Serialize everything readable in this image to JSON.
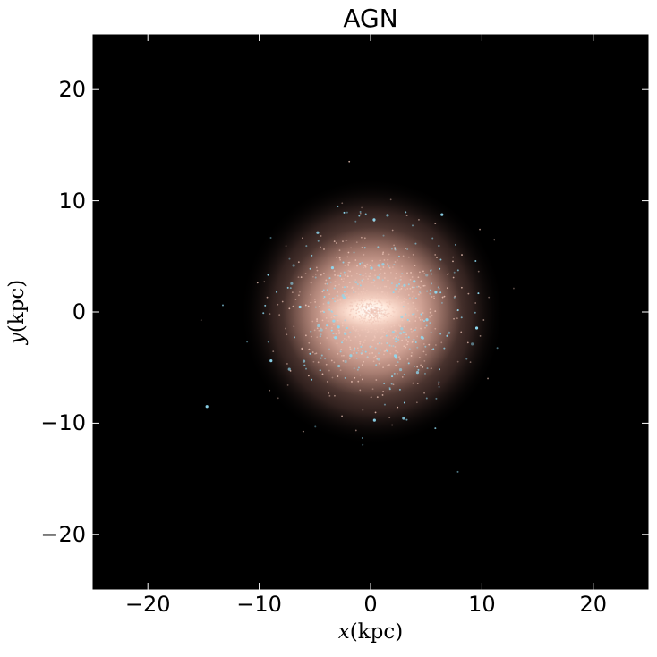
{
  "title": "AGN",
  "xlabel": {
    "var": "x",
    "unit": "(kpc)"
  },
  "ylabel": {
    "var": "y",
    "unit": "(kpc)"
  },
  "x_ticks": [
    "−20",
    "−10",
    "0",
    "10",
    "20"
  ],
  "y_ticks": [
    "20",
    "10",
    "0",
    "−10",
    "−20"
  ],
  "x_range_kpc": [
    -25,
    25
  ],
  "y_range_kpc": [
    -25,
    25
  ],
  "colors": {
    "background": "#000000",
    "core": "#fff1e6",
    "disk": "#e6b8a8",
    "young_stars": "#8ed8f0",
    "frame": "#ffffff"
  }
}
